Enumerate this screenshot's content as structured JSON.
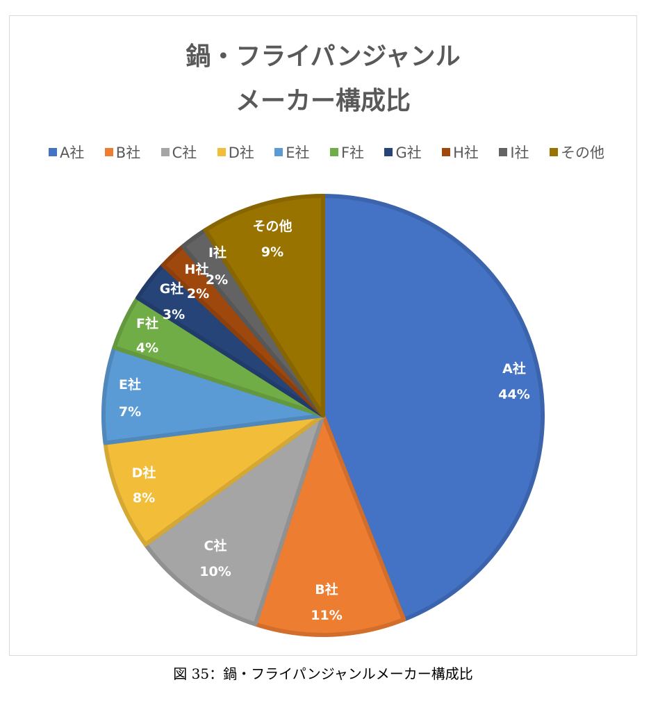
{
  "caption": "図 35：鍋・フライパンジャンルメーカー構成比",
  "chart_data": {
    "type": "pie",
    "title_lines": [
      "鍋・フライパンジャンル",
      "メーカー構成比"
    ],
    "legend_position": "top",
    "start_angle": "12 o'clock",
    "direction": "clockwise",
    "categories": [
      "A社",
      "B社",
      "C社",
      "D社",
      "E社",
      "F社",
      "G社",
      "H社",
      "I社",
      "その他"
    ],
    "values": [
      44,
      11,
      10,
      8,
      7,
      4,
      3,
      2,
      2,
      9
    ],
    "value_labels": [
      "44%",
      "11%",
      "10%",
      "8%",
      "7%",
      "4%",
      "3%",
      "2%",
      "2%",
      "9%"
    ],
    "colors": [
      "#4472C4",
      "#ED7D31",
      "#A5A5A5",
      "#F2BE3A",
      "#5B9BD5",
      "#70AD47",
      "#264478",
      "#9E480E",
      "#636363",
      "#997300"
    ]
  }
}
